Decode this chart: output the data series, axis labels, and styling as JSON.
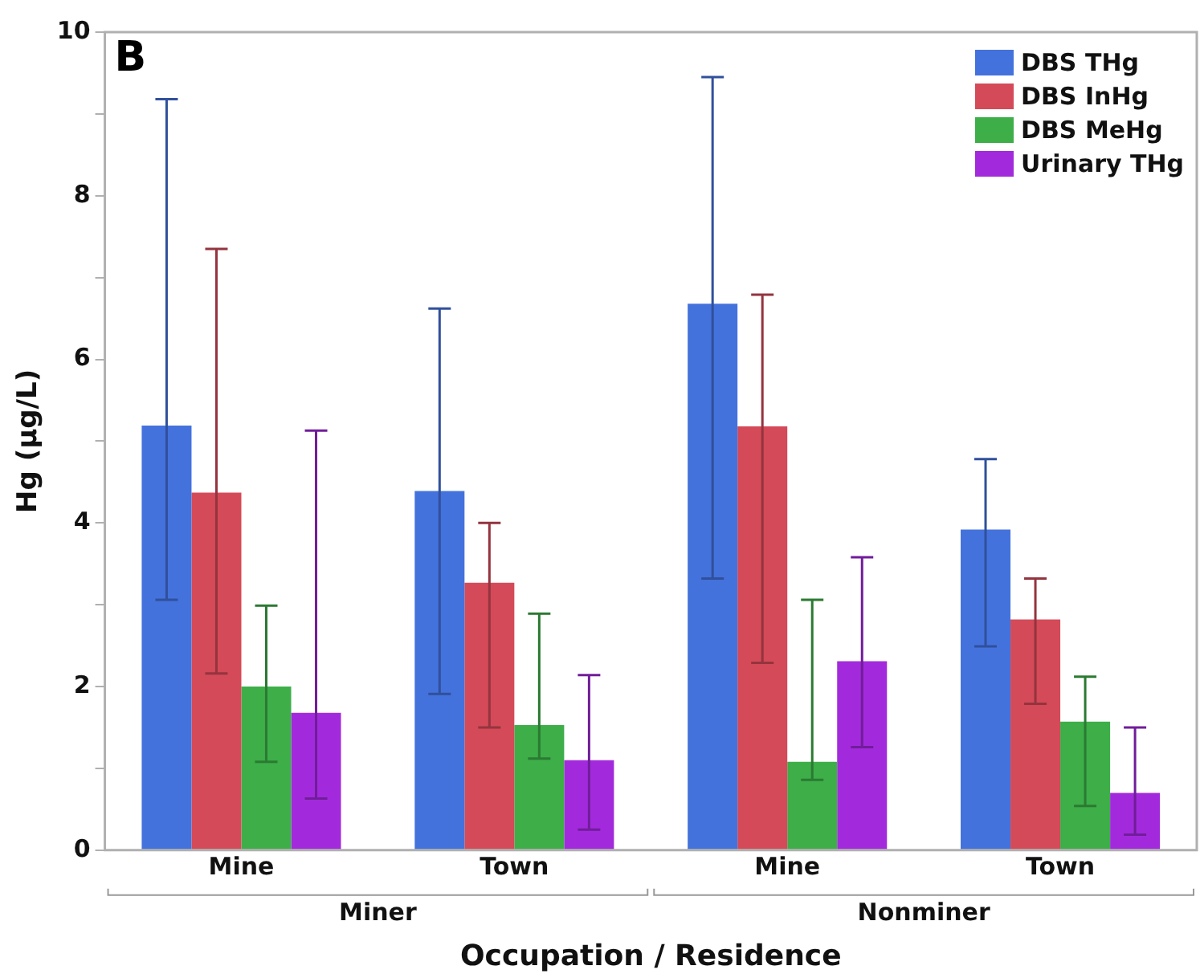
{
  "chart_data": {
    "type": "bar",
    "title": "B",
    "xlabel": "Occupation / Residence",
    "ylabel": "Hg (µg/L)",
    "categories": [
      "Mine",
      "Town",
      "Mine",
      "Town"
    ],
    "annotations": [
      "Miner",
      "Nonminer"
    ],
    "series": [
      {
        "name": "DBS THg",
        "color": "#4472dd",
        "values": [
          5.19,
          4.39,
          6.68,
          3.92
        ],
        "errors": [
          [
            3.06,
            9.18
          ],
          [
            1.91,
            6.62
          ],
          [
            3.32,
            9.45
          ],
          [
            2.49,
            4.78
          ]
        ]
      },
      {
        "name": "DBS InHg",
        "color": "#d44a58",
        "values": [
          4.37,
          3.27,
          5.18,
          2.82
        ],
        "errors": [
          [
            2.16,
            7.35
          ],
          [
            1.5,
            4.0
          ],
          [
            2.29,
            6.79
          ],
          [
            1.79,
            3.32
          ]
        ]
      },
      {
        "name": "DBS MeHg",
        "color": "#3dae48",
        "values": [
          2.0,
          1.53,
          1.08,
          1.57
        ],
        "errors": [
          [
            1.08,
            2.99
          ],
          [
            1.12,
            2.89
          ],
          [
            0.86,
            3.06
          ],
          [
            0.54,
            2.12
          ]
        ]
      },
      {
        "name": "Urinary THg",
        "color": "#a22adc",
        "values": [
          1.68,
          1.1,
          2.31,
          0.7
        ],
        "errors": [
          [
            0.63,
            5.13
          ],
          [
            0.25,
            2.14
          ],
          [
            1.26,
            3.58
          ],
          [
            0.19,
            1.5
          ]
        ]
      }
    ],
    "ylim": [
      0,
      10
    ],
    "yticks": [
      0,
      {
        "value": 1,
        "label": null
      },
      2,
      {
        "value": 3,
        "label": null
      },
      4,
      {
        "value": 5,
        "label": null
      },
      6,
      {
        "value": 7,
        "label": null
      },
      8,
      {
        "value": 9,
        "label": null
      },
      10
    ],
    "legend": "top right",
    "grid": false
  }
}
